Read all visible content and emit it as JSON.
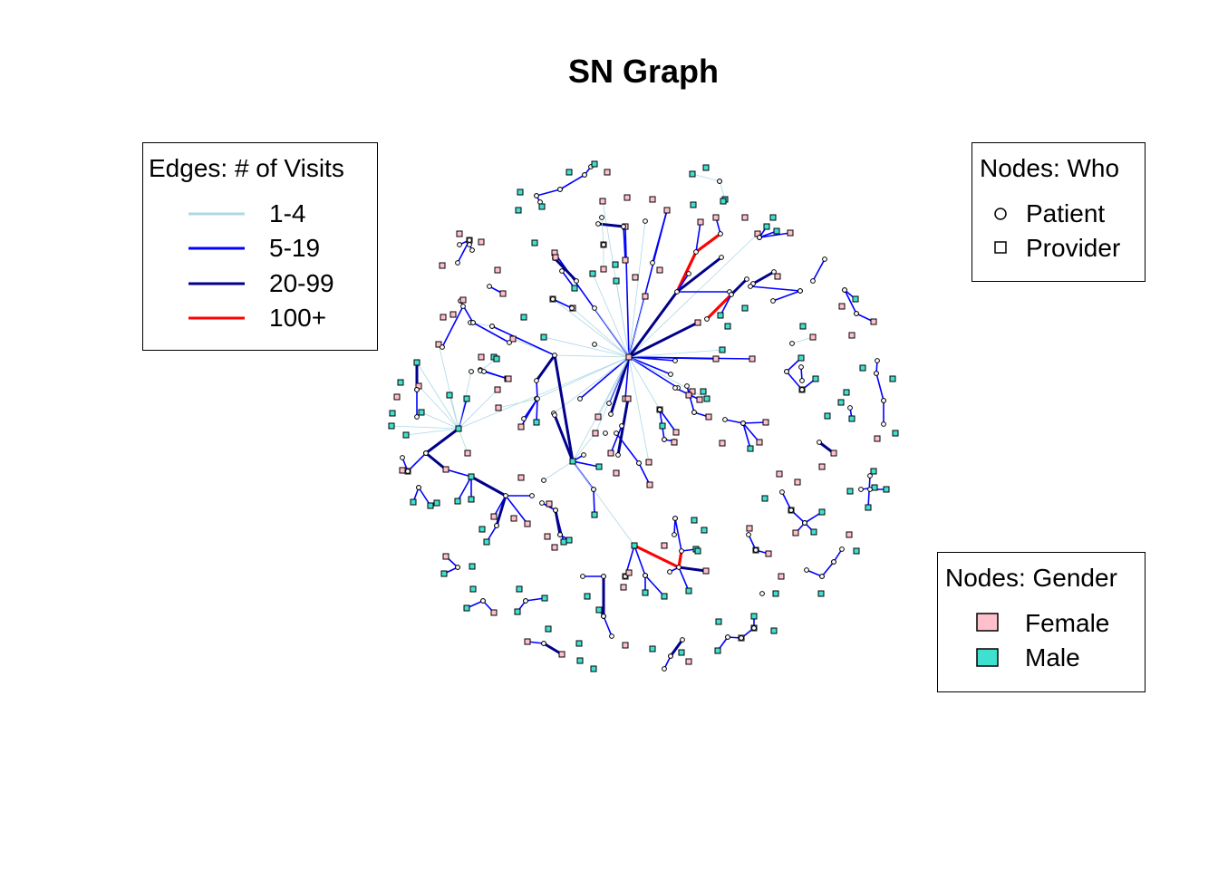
{
  "title": "SN Graph",
  "legend_edges": {
    "title": "Edges: # of Visits",
    "items": [
      {
        "label": "1-4",
        "color": "#add8e6"
      },
      {
        "label": "5-19",
        "color": "#0000ff"
      },
      {
        "label": "20-99",
        "color": "#00008b"
      },
      {
        "label": "100+",
        "color": "#ff0000"
      }
    ]
  },
  "legend_who": {
    "title": "Nodes: Who",
    "items": [
      {
        "label": "Patient",
        "shape": "circle"
      },
      {
        "label": "Provider",
        "shape": "square"
      }
    ]
  },
  "legend_gender": {
    "title": "Nodes: Gender",
    "items": [
      {
        "label": "Female",
        "color": "#ffc0cb"
      },
      {
        "label": "Male",
        "color": "#40e0d0"
      }
    ]
  },
  "colors": {
    "background": "#ffffff",
    "node_outline": "#000000",
    "patient_node": "#ffffff"
  }
}
